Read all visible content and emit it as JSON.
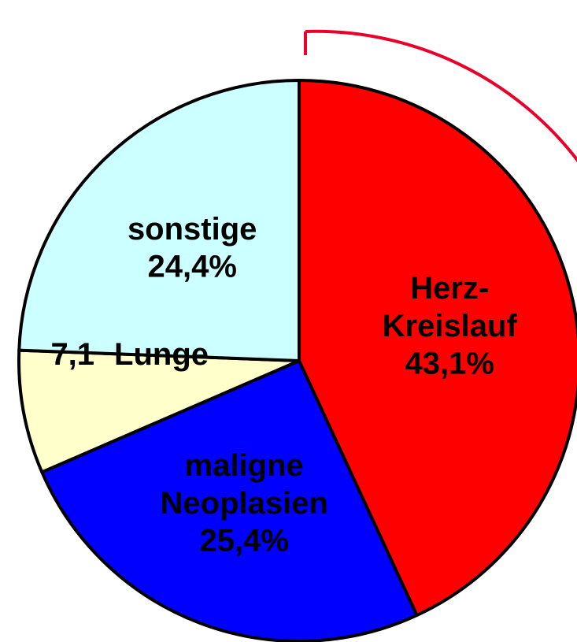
{
  "chart_data": {
    "type": "pie",
    "categories": [
      "Herz-Kreislauf",
      "maligne Neoplasien",
      "Lunge",
      "sonstige"
    ],
    "values": [
      43.1,
      25.4,
      7.1,
      24.4
    ],
    "value_labels": [
      "43,1%",
      "25,4%",
      "7,1",
      "24,4%"
    ],
    "colors": [
      "#ff0000",
      "#0000ff",
      "#ffffcc",
      "#ccffff"
    ]
  }
}
